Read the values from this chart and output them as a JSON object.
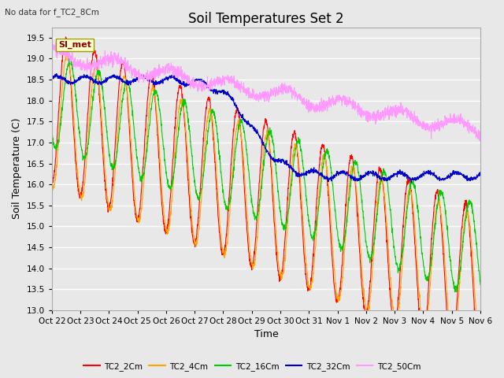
{
  "title": "Soil Temperatures Set 2",
  "xlabel": "Time",
  "ylabel": "Soil Temperature (C)",
  "annotation": "No data for f_TC2_8Cm",
  "legend_box_label": "SI_met",
  "ylim": [
    13.0,
    19.75
  ],
  "yticks": [
    13.0,
    13.5,
    14.0,
    14.5,
    15.0,
    15.5,
    16.0,
    16.5,
    17.0,
    17.5,
    18.0,
    18.5,
    19.0,
    19.5
  ],
  "xtick_labels": [
    "Oct 22",
    "Oct 23",
    "Oct 24",
    "Oct 25",
    "Oct 26",
    "Oct 27",
    "Oct 28",
    "Oct 29",
    "Oct 30",
    "Oct 31",
    "Nov 1",
    "Nov 2",
    "Nov 3",
    "Nov 4",
    "Nov 5",
    "Nov 6"
  ],
  "series": [
    {
      "label": "TC2_2Cm",
      "color": "#ff0000",
      "lw": 0.8
    },
    {
      "label": "TC2_4Cm",
      "color": "#ffa500",
      "lw": 0.8
    },
    {
      "label": "TC2_16Cm",
      "color": "#00cc00",
      "lw": 0.8
    },
    {
      "label": "TC2_32Cm",
      "color": "#0000cc",
      "lw": 0.8
    },
    {
      "label": "TC2_50Cm",
      "color": "#ff99ff",
      "lw": 0.8
    }
  ],
  "bg_color": "#e8e8e8",
  "plot_bg_color": "#e8e8e8",
  "grid_color": "#ffffff",
  "title_fontsize": 12,
  "axis_label_fontsize": 9,
  "tick_fontsize": 7.5
}
